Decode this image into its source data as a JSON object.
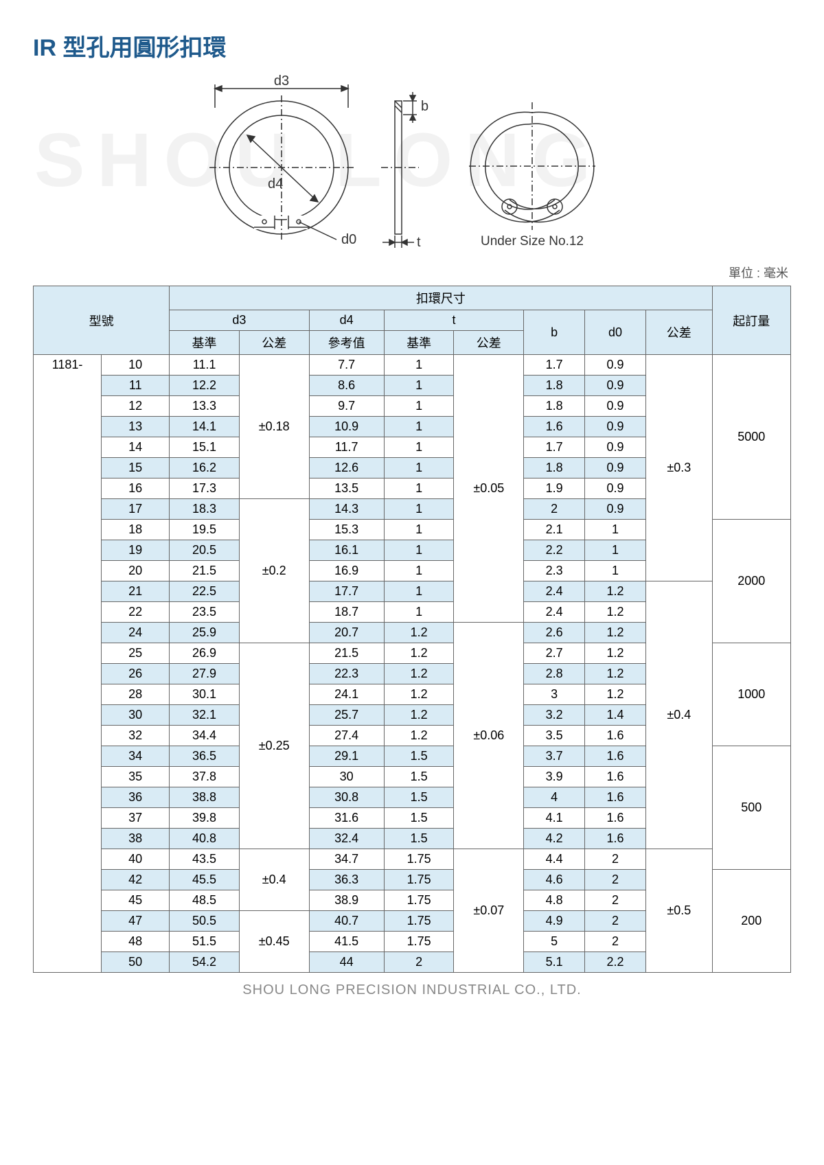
{
  "title": "IR 型孔用圓形扣環",
  "watermark": "SHOU LONG",
  "diagram": {
    "d3_label": "d3",
    "d4_label": "d4",
    "d0_label": "d0",
    "b_label": "b",
    "t_label": "t",
    "under_size_label": "Under Size No.12"
  },
  "unit_label": "單位 : 毫米",
  "headers": {
    "model": "型號",
    "ring_dims": "扣環尺寸",
    "moq": "起訂量",
    "d3": "d3",
    "d4": "d4",
    "t": "t",
    "b": "b",
    "d0": "d0",
    "tol": "公差",
    "base": "基準",
    "ref": "參考值"
  },
  "model_prefix": "1181-",
  "tol_d3": [
    "±0.18",
    "±0.2",
    "±0.25",
    "±0.4",
    "±0.45"
  ],
  "tol_t": [
    "±0.05",
    "±0.06",
    "±0.07"
  ],
  "tol_last": [
    "±0.3",
    "±0.4",
    "±0.5"
  ],
  "moq": [
    "5000",
    "2000",
    "1000",
    "500",
    "200"
  ],
  "rows": [
    {
      "n": "10",
      "d3": "11.1",
      "d4": "7.7",
      "tb": "1",
      "b": "1.7",
      "d0": "0.9"
    },
    {
      "n": "11",
      "d3": "12.2",
      "d4": "8.6",
      "tb": "1",
      "b": "1.8",
      "d0": "0.9"
    },
    {
      "n": "12",
      "d3": "13.3",
      "d4": "9.7",
      "tb": "1",
      "b": "1.8",
      "d0": "0.9"
    },
    {
      "n": "13",
      "d3": "14.1",
      "d4": "10.9",
      "tb": "1",
      "b": "1.6",
      "d0": "0.9"
    },
    {
      "n": "14",
      "d3": "15.1",
      "d4": "11.7",
      "tb": "1",
      "b": "1.7",
      "d0": "0.9"
    },
    {
      "n": "15",
      "d3": "16.2",
      "d4": "12.6",
      "tb": "1",
      "b": "1.8",
      "d0": "0.9"
    },
    {
      "n": "16",
      "d3": "17.3",
      "d4": "13.5",
      "tb": "1",
      "b": "1.9",
      "d0": "0.9"
    },
    {
      "n": "17",
      "d3": "18.3",
      "d4": "14.3",
      "tb": "1",
      "b": "2",
      "d0": "0.9"
    },
    {
      "n": "18",
      "d3": "19.5",
      "d4": "15.3",
      "tb": "1",
      "b": "2.1",
      "d0": "1"
    },
    {
      "n": "19",
      "d3": "20.5",
      "d4": "16.1",
      "tb": "1",
      "b": "2.2",
      "d0": "1"
    },
    {
      "n": "20",
      "d3": "21.5",
      "d4": "16.9",
      "tb": "1",
      "b": "2.3",
      "d0": "1"
    },
    {
      "n": "21",
      "d3": "22.5",
      "d4": "17.7",
      "tb": "1",
      "b": "2.4",
      "d0": "1.2"
    },
    {
      "n": "22",
      "d3": "23.5",
      "d4": "18.7",
      "tb": "1",
      "b": "2.4",
      "d0": "1.2"
    },
    {
      "n": "24",
      "d3": "25.9",
      "d4": "20.7",
      "tb": "1.2",
      "b": "2.6",
      "d0": "1.2"
    },
    {
      "n": "25",
      "d3": "26.9",
      "d4": "21.5",
      "tb": "1.2",
      "b": "2.7",
      "d0": "1.2"
    },
    {
      "n": "26",
      "d3": "27.9",
      "d4": "22.3",
      "tb": "1.2",
      "b": "2.8",
      "d0": "1.2"
    },
    {
      "n": "28",
      "d3": "30.1",
      "d4": "24.1",
      "tb": "1.2",
      "b": "3",
      "d0": "1.2"
    },
    {
      "n": "30",
      "d3": "32.1",
      "d4": "25.7",
      "tb": "1.2",
      "b": "3.2",
      "d0": "1.4"
    },
    {
      "n": "32",
      "d3": "34.4",
      "d4": "27.4",
      "tb": "1.2",
      "b": "3.5",
      "d0": "1.6"
    },
    {
      "n": "34",
      "d3": "36.5",
      "d4": "29.1",
      "tb": "1.5",
      "b": "3.7",
      "d0": "1.6"
    },
    {
      "n": "35",
      "d3": "37.8",
      "d4": "30",
      "tb": "1.5",
      "b": "3.9",
      "d0": "1.6"
    },
    {
      "n": "36",
      "d3": "38.8",
      "d4": "30.8",
      "tb": "1.5",
      "b": "4",
      "d0": "1.6"
    },
    {
      "n": "37",
      "d3": "39.8",
      "d4": "31.6",
      "tb": "1.5",
      "b": "4.1",
      "d0": "1.6"
    },
    {
      "n": "38",
      "d3": "40.8",
      "d4": "32.4",
      "tb": "1.5",
      "b": "4.2",
      "d0": "1.6"
    },
    {
      "n": "40",
      "d3": "43.5",
      "d4": "34.7",
      "tb": "1.75",
      "b": "4.4",
      "d0": "2"
    },
    {
      "n": "42",
      "d3": "45.5",
      "d4": "36.3",
      "tb": "1.75",
      "b": "4.6",
      "d0": "2"
    },
    {
      "n": "45",
      "d3": "48.5",
      "d4": "38.9",
      "tb": "1.75",
      "b": "4.8",
      "d0": "2"
    },
    {
      "n": "47",
      "d3": "50.5",
      "d4": "40.7",
      "tb": "1.75",
      "b": "4.9",
      "d0": "2"
    },
    {
      "n": "48",
      "d3": "51.5",
      "d4": "41.5",
      "tb": "1.75",
      "b": "5",
      "d0": "2"
    },
    {
      "n": "50",
      "d3": "54.2",
      "d4": "44",
      "tb": "2",
      "b": "5.1",
      "d0": "2.2"
    }
  ],
  "footer": "SHOU LONG PRECISION INDUSTRIAL CO., LTD."
}
